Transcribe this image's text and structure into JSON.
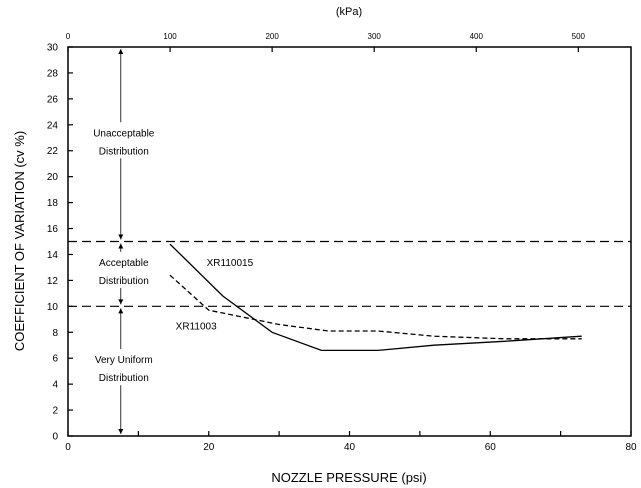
{
  "chart_data": {
    "type": "line",
    "xlabel": "NOZZLE PRESSURE (psi)",
    "ylabel": "COEFFICIENT OF VARIATION (cv %)",
    "top_axis_label": "(kPa)",
    "xlim": [
      0,
      80
    ],
    "ylim": [
      0,
      30
    ],
    "x_ticks": [
      0,
      10,
      20,
      30,
      40,
      50,
      60,
      70,
      80
    ],
    "x_tick_labels": [
      "0",
      "",
      "20",
      "",
      "40",
      "",
      "60",
      "",
      "80"
    ],
    "y_ticks": [
      0,
      2,
      4,
      6,
      8,
      10,
      12,
      14,
      16,
      18,
      20,
      22,
      24,
      26,
      28,
      30
    ],
    "y_tick_labels": [
      "0",
      "2",
      "4",
      "6",
      "8",
      "10",
      "12",
      "14",
      "16",
      "18",
      "20",
      "22",
      "24",
      "26",
      "28",
      "30"
    ],
    "top_ticks_kpa": [
      0,
      100,
      200,
      300,
      400,
      500
    ],
    "top_tick_labels": [
      "0",
      "100",
      "200",
      "300",
      "400",
      "500"
    ],
    "thresholds": [
      {
        "y": 15,
        "style": "dashed"
      },
      {
        "y": 10,
        "style": "dashed"
      }
    ],
    "series": [
      {
        "name": "XR110015",
        "style": "solid",
        "x": [
          14.5,
          22,
          29,
          36,
          44,
          52,
          62,
          73
        ],
        "y": [
          14.8,
          10.8,
          8.0,
          6.6,
          6.6,
          7.0,
          7.3,
          7.7
        ]
      },
      {
        "name": "XR11003",
        "style": "dashed",
        "x": [
          14.5,
          20,
          30,
          37,
          44,
          52,
          62,
          73
        ],
        "y": [
          12.4,
          9.7,
          8.6,
          8.1,
          8.1,
          7.7,
          7.5,
          7.5
        ]
      }
    ],
    "regions": [
      {
        "lines": [
          "Unacceptable",
          "Distribution"
        ],
        "ymid": 22.5
      },
      {
        "lines": [
          "Acceptable",
          "Distribution"
        ],
        "ymid": 12.5
      },
      {
        "lines": [
          "Very Uniform",
          "Distribution"
        ],
        "ymid": 5
      }
    ],
    "region_arrow_x": 7.5,
    "grid": false,
    "legend": "none"
  }
}
